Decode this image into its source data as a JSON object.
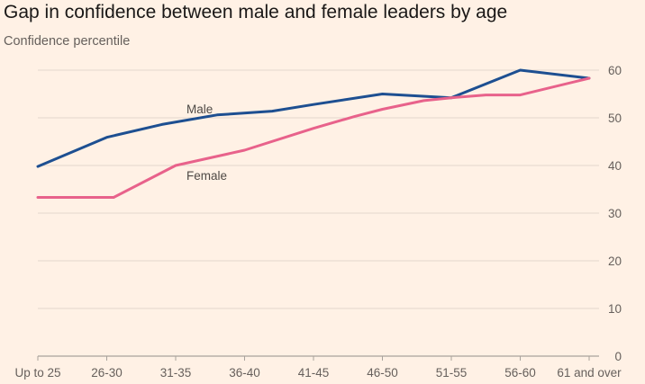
{
  "chart_data": {
    "type": "line",
    "title": "Gap in confidence between male and female leaders by age",
    "ylabel": "Confidence percentile",
    "xlabel": "",
    "categories": [
      "Up to 25",
      "26-30",
      "31-35",
      "36-40",
      "41-45",
      "46-50",
      "51-55",
      "56-60",
      "61 and over"
    ],
    "x": [
      0,
      0.3,
      1,
      1.8,
      2.3,
      3,
      3.5,
      4,
      4.6,
      5,
      5.3,
      6,
      6.3,
      7,
      7.5,
      8
    ],
    "ylim": [
      0,
      60
    ],
    "yticks": [
      0,
      10,
      20,
      30,
      40,
      50,
      60
    ],
    "grid": true,
    "series": [
      {
        "name": "Male",
        "color": "#1d4f91",
        "points": [
          {
            "x": 0,
            "y": 39.8
          },
          {
            "x": 1,
            "y": 45.9
          },
          {
            "x": 1.8,
            "y": 48.6
          },
          {
            "x": 2.6,
            "y": 50.6
          },
          {
            "x": 3.4,
            "y": 51.4
          },
          {
            "x": 4,
            "y": 52.8
          },
          {
            "x": 5,
            "y": 55.0
          },
          {
            "x": 6,
            "y": 54.2
          },
          {
            "x": 7,
            "y": 60.0
          },
          {
            "x": 8,
            "y": 58.3
          }
        ]
      },
      {
        "name": "Female",
        "color": "#e8628b",
        "points": [
          {
            "x": 0,
            "y": 33.3
          },
          {
            "x": 1.1,
            "y": 33.3
          },
          {
            "x": 2,
            "y": 40.0
          },
          {
            "x": 3,
            "y": 43.2
          },
          {
            "x": 4,
            "y": 47.8
          },
          {
            "x": 4.6,
            "y": 50.3
          },
          {
            "x": 5,
            "y": 51.8
          },
          {
            "x": 5.6,
            "y": 53.6
          },
          {
            "x": 6,
            "y": 54.2
          },
          {
            "x": 6.5,
            "y": 54.8
          },
          {
            "x": 7,
            "y": 54.8
          },
          {
            "x": 8,
            "y": 58.3
          }
        ]
      }
    ],
    "annotations": [
      {
        "text": "Male",
        "series": "Male"
      },
      {
        "text": "Female",
        "series": "Female"
      }
    ]
  }
}
